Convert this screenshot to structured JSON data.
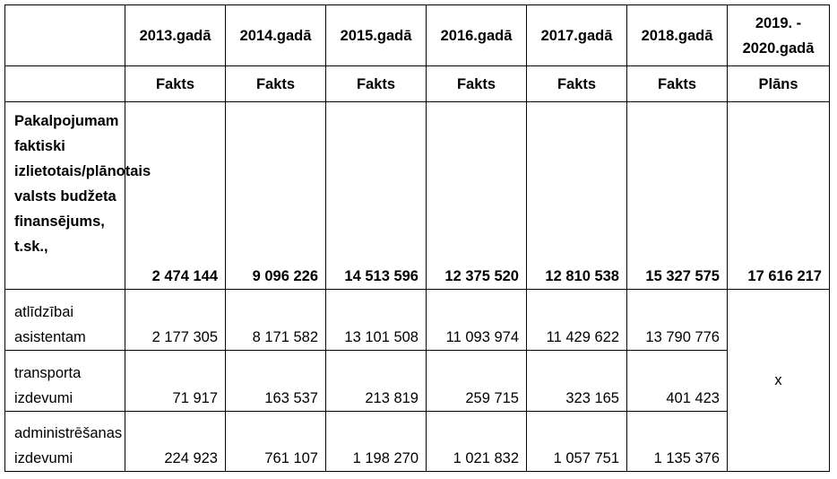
{
  "table": {
    "years": [
      "2013.gadā",
      "2014.gadā",
      "2015.gadā",
      "2016.gadā",
      "2017.gadā",
      "2018.gadā",
      "2019. - 2020.gadā"
    ],
    "status": [
      "Fakts",
      "Fakts",
      "Fakts",
      "Fakts",
      "Fakts",
      "Fakts",
      "Plāns"
    ],
    "total": {
      "label": "Pakalpojumam faktiski izlietotais/plānotais valsts budžeta finansējums, t.sk.,",
      "values": [
        "2 474 144",
        "9 096 226",
        "14 513 596",
        "12 375 520",
        "12 810 538",
        "15 327 575",
        "17 616 217"
      ]
    },
    "rows": [
      {
        "label": "atlīdzībai asistentam",
        "values": [
          "2 177 305",
          "8 171 582",
          "13 101 508",
          "11 093 974",
          "11 429 622",
          "13 790 776"
        ]
      },
      {
        "label": "transporta izdevumi",
        "values": [
          "71 917",
          "163 537",
          "213 819",
          "259 715",
          "323 165",
          "401 423"
        ]
      },
      {
        "label": "administrēšanas izdevumi",
        "values": [
          "224 923",
          "761 107",
          "1 198 270",
          "1 021 832",
          "1 057 751",
          "1 135 376"
        ]
      }
    ],
    "plan_placeholder": "x"
  }
}
